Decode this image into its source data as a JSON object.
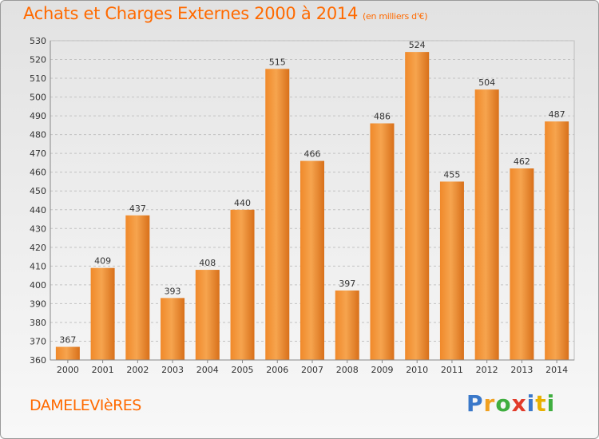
{
  "title": "Achats et Charges Externes 2000 à 2014",
  "subtitle": "(en milliers d'€)",
  "commune": "DAMELEVIèRES",
  "logo": {
    "letters": [
      "P",
      "r",
      "o",
      "x",
      "i",
      "t",
      "i"
    ],
    "colors": [
      "#3a78c9",
      "#f0a020",
      "#3fae3f",
      "#e23b2a",
      "#3a78c9",
      "#e8b000",
      "#3fae3f"
    ]
  },
  "colors": {
    "bar": "#f0892a",
    "bar_light": "#f6a44e",
    "bar_dark": "#d8701a",
    "accent": "#ff6a00"
  },
  "chart_data": {
    "type": "bar",
    "categories": [
      "2000",
      "2001",
      "2002",
      "2003",
      "2004",
      "2005",
      "2006",
      "2007",
      "2008",
      "2009",
      "2010",
      "2011",
      "2012",
      "2013",
      "2014"
    ],
    "values": [
      367,
      409,
      437,
      393,
      408,
      440,
      515,
      466,
      397,
      486,
      524,
      455,
      504,
      462,
      487
    ],
    "data_labels": [
      "367",
      "409",
      "437",
      "393",
      "408",
      "440",
      "515",
      "466",
      "397",
      "486",
      "524",
      "455",
      "504",
      "462",
      "487"
    ],
    "ylim": [
      360,
      530
    ],
    "ytick_step": 10,
    "grid": true,
    "legend": "none"
  }
}
